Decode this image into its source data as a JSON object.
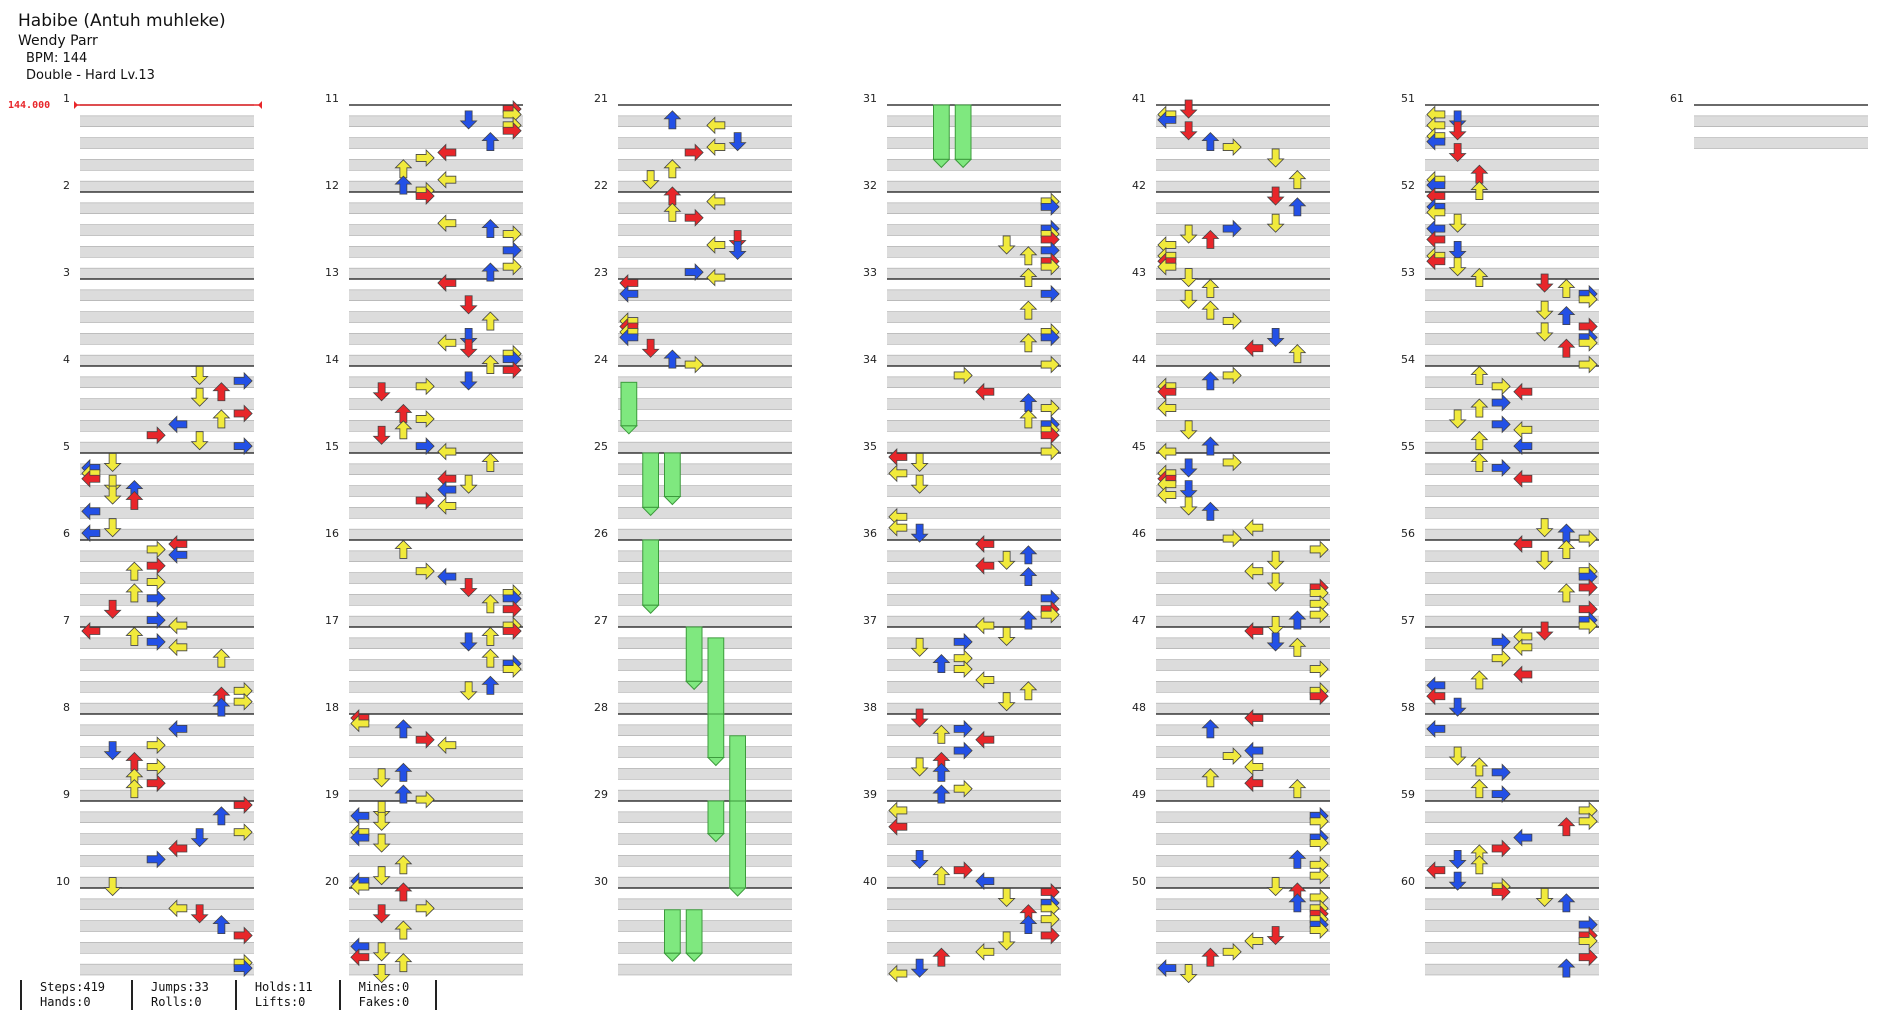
{
  "song": {
    "title": "Habibe (Antuh muhleke)",
    "artist": "Wendy Parr",
    "bpm_text": "BPM: 144",
    "chart_text": "Double - Hard  Lv.13",
    "bpm_marker": "144.000"
  },
  "colors": {
    "red": "#e8262a",
    "blue": "#2350e6",
    "yellow": "#f1ea3c",
    "hold": "#7fe87f",
    "band": "#dcdcdc"
  },
  "measures": [
    "1",
    "2",
    "3",
    "4",
    "5",
    "6",
    "7",
    "8",
    "9",
    "10",
    "11",
    "12",
    "13",
    "14",
    "15",
    "16",
    "17",
    "18",
    "19",
    "20",
    "21",
    "22",
    "23",
    "24",
    "25",
    "26",
    "27",
    "28",
    "29",
    "30",
    "31",
    "32",
    "33",
    "34",
    "35",
    "36",
    "37",
    "38",
    "39",
    "40",
    "41",
    "42",
    "43",
    "44",
    "45",
    "46",
    "47",
    "48",
    "49",
    "50",
    "51",
    "52",
    "53",
    "54",
    "55",
    "56",
    "57",
    "58",
    "59",
    "60",
    "61"
  ],
  "stats": {
    "col1": [
      "Steps:419",
      "Hands:0"
    ],
    "col2": [
      "Jumps:33",
      "Rolls:0"
    ],
    "col3": [
      "Holds:11",
      "Lifts:0"
    ],
    "col4": [
      "Mines:0",
      "Fakes:0"
    ]
  }
}
